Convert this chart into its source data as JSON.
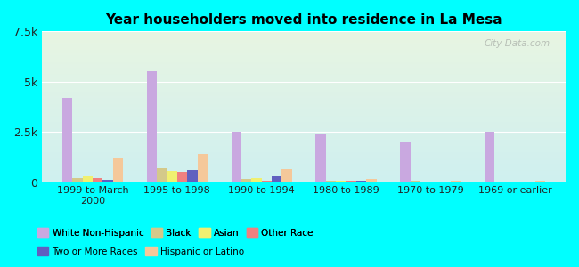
{
  "title": "Year householders moved into residence in La Mesa",
  "categories": [
    "1999 to March\n2000",
    "1995 to 1998",
    "1990 to 1994",
    "1980 to 1989",
    "1970 to 1979",
    "1969 or earlier"
  ],
  "series": [
    {
      "label": "White Non-Hispanic",
      "color": "#c9a8e0",
      "values": [
        4200,
        5500,
        2500,
        2400,
        2000,
        2500
      ]
    },
    {
      "label": "Black",
      "color": "#d4c98a",
      "values": [
        200,
        700,
        150,
        80,
        50,
        30
      ]
    },
    {
      "label": "Asian",
      "color": "#f0f070",
      "values": [
        280,
        550,
        200,
        70,
        30,
        20
      ]
    },
    {
      "label": "Other Race",
      "color": "#f08080",
      "values": [
        200,
        500,
        80,
        50,
        30,
        30
      ]
    },
    {
      "label": "Two or More Races",
      "color": "#6060c0",
      "values": [
        100,
        600,
        280,
        60,
        20,
        20
      ]
    },
    {
      "label": "Hispanic or Latino",
      "color": "#f5c89a",
      "values": [
        1200,
        1400,
        650,
        150,
        60,
        60
      ]
    }
  ],
  "ylim": [
    0,
    7500
  ],
  "yticks": [
    0,
    2500,
    5000,
    7500
  ],
  "ytick_labels": [
    "0",
    "2.5k",
    "5k",
    "7.5k"
  ],
  "fig_bg": "#00ffff",
  "plot_bg_top": "#e8f5e2",
  "plot_bg_bottom": "#cff0f0",
  "bar_width": 0.12,
  "watermark": "City-Data.com",
  "legend_row1": [
    "White Non-Hispanic",
    "Black",
    "Asian",
    "Other Race"
  ],
  "legend_row2": [
    "Two or More Races",
    "Hispanic or Latino"
  ]
}
